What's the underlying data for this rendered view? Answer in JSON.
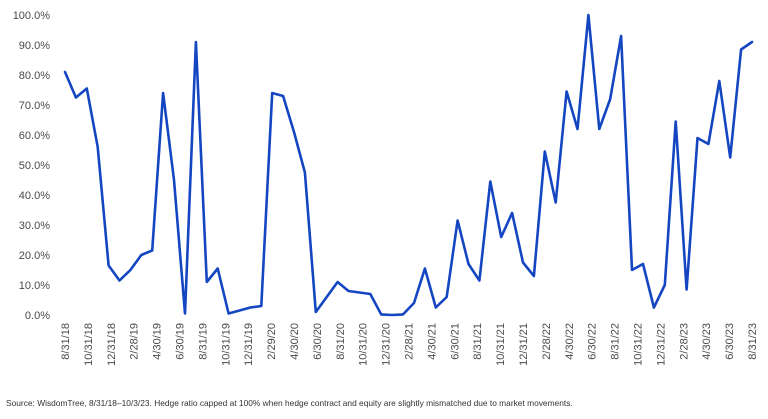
{
  "chart_data": {
    "type": "line",
    "title": "",
    "xlabel": "",
    "ylabel": "",
    "ylim": [
      0,
      100
    ],
    "y_ticks": [
      "0.0%",
      "10.0%",
      "20.0%",
      "30.0%",
      "40.0%",
      "50.0%",
      "60.0%",
      "70.0%",
      "80.0%",
      "90.0%",
      "100.0%"
    ],
    "y_tick_values": [
      0,
      10,
      20,
      30,
      40,
      50,
      60,
      70,
      80,
      90,
      100
    ],
    "x_tick_labels": [
      "8/31/18",
      "10/31/18",
      "12/31/18",
      "2/28/19",
      "4/30/19",
      "6/30/19",
      "8/31/19",
      "10/31/19",
      "12/31/19",
      "2/29/20",
      "4/30/20",
      "6/30/20",
      "8/31/20",
      "10/31/20",
      "12/31/20",
      "2/28/21",
      "4/30/21",
      "6/30/21",
      "8/31/21",
      "10/31/21",
      "12/31/21",
      "2/28/22",
      "4/30/22",
      "6/30/22",
      "8/31/22",
      "10/31/22",
      "12/31/22",
      "2/28/23",
      "4/30/23",
      "6/30/23",
      "8/31/23"
    ],
    "grid": false,
    "legend": "none",
    "line_color": "#1546c2",
    "series": [
      {
        "values": [
          81,
          72.5,
          75.5,
          56,
          16.5,
          11.5,
          15,
          20,
          21.5,
          74,
          45,
          0.5,
          91,
          11,
          15.5,
          0.5,
          1.5,
          2.5,
          3,
          74,
          73,
          61,
          47.5,
          1,
          6,
          11,
          8,
          7.5,
          7,
          0.2,
          0,
          0.2,
          4,
          15.5,
          2.5,
          6,
          31.5,
          17,
          11.5,
          44.5,
          26,
          34,
          17.5,
          13,
          54.5,
          37.5,
          74.5,
          62,
          100,
          62,
          72,
          93,
          15,
          17,
          2.5,
          10,
          64.5,
          8.5,
          59,
          57,
          78,
          52.5,
          88.5,
          91
        ]
      }
    ]
  },
  "footnote": "Source: WisdomTree, 8/31/18–10/3/23. Hedge ratio capped at 100% when hedge contract and equity are slightly mismatched due to market movements."
}
